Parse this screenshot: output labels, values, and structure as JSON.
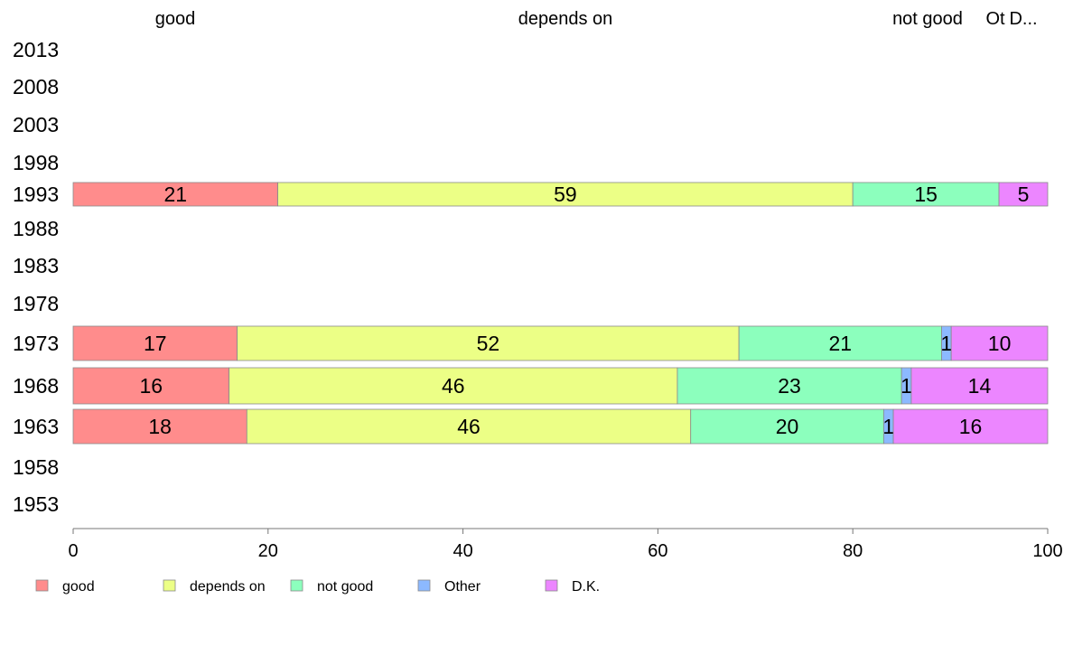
{
  "chart_data": {
    "type": "bar",
    "orientation": "horizontal",
    "stacked": true,
    "categories": [
      "2013",
      "2008",
      "2003",
      "1998",
      "1993",
      "1988",
      "1983",
      "1978",
      "1973",
      "1968",
      "1963",
      "1958",
      "1953"
    ],
    "series": [
      {
        "name": "good",
        "color": "#ff8c8c",
        "values": [
          null,
          null,
          null,
          null,
          21,
          null,
          null,
          null,
          17,
          16,
          18,
          null,
          null
        ]
      },
      {
        "name": "depends on",
        "color": "#ecff86",
        "values": [
          null,
          null,
          null,
          null,
          59,
          null,
          null,
          null,
          52,
          46,
          46,
          null,
          null
        ]
      },
      {
        "name": "not good",
        "color": "#8cffbd",
        "values": [
          null,
          null,
          null,
          null,
          15,
          null,
          null,
          null,
          21,
          23,
          20,
          null,
          null
        ]
      },
      {
        "name": "Other",
        "color": "#8cb9ff",
        "values": [
          null,
          null,
          null,
          null,
          0,
          null,
          null,
          null,
          1,
          1,
          1,
          null,
          null
        ]
      },
      {
        "name": "D.K.",
        "color": "#ec86ff",
        "values": [
          null,
          null,
          null,
          null,
          5,
          null,
          null,
          null,
          10,
          14,
          16,
          null,
          null
        ]
      }
    ],
    "bar_labels": [
      [
        "21",
        "59",
        "15",
        "",
        "5"
      ],
      [
        "17",
        "52",
        "21",
        "1",
        "10"
      ],
      [
        "16",
        "46",
        "23",
        "1",
        "14"
      ],
      [
        "18",
        "46",
        "20",
        "1",
        "16"
      ]
    ],
    "top_labels": [
      "good",
      "depends on",
      "not good",
      "Ot",
      "D..."
    ],
    "xlim": [
      0,
      100
    ],
    "xticks": [
      "0",
      "20",
      "40",
      "60",
      "80",
      "100"
    ],
    "legend": [
      "good",
      "depends on",
      "not good",
      "Other",
      "D.K."
    ],
    "legend_position": "bottom",
    "grid": false
  }
}
